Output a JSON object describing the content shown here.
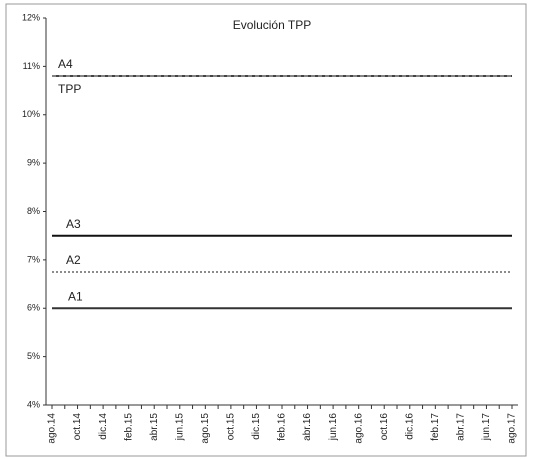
{
  "chart_data": {
    "type": "line",
    "title": "Evolución TPP",
    "categories": [
      "ago.14",
      null,
      "oct.14",
      null,
      "dic.14",
      null,
      "feb.15",
      null,
      "abr.15",
      null,
      "jun.15",
      null,
      "ago.15",
      null,
      "oct.15",
      null,
      "dic.15",
      null,
      "feb.16",
      null,
      "abr.16",
      null,
      "jun.16",
      null,
      "ago.16",
      null,
      "oct.16",
      null,
      "dic.16",
      null,
      "feb.17",
      null,
      "abr.17",
      null,
      "jun.17",
      null,
      "ago.17"
    ],
    "series": [
      {
        "name": "A4",
        "color": "#444444",
        "dash": "none",
        "values": [
          10.8,
          10.8,
          10.8,
          10.8,
          10.8,
          10.8,
          10.8,
          10.8,
          10.8,
          10.8,
          10.8,
          10.8,
          10.8,
          10.8,
          10.8,
          10.8,
          10.8,
          10.8,
          10.8,
          10.8,
          10.8,
          10.8,
          10.8,
          10.8,
          10.8,
          10.8,
          10.8,
          10.8,
          10.8,
          10.8,
          10.8,
          10.8,
          10.8,
          10.8,
          10.8,
          10.8,
          10.8
        ]
      },
      {
        "name": "TPP",
        "color": "#999999",
        "dash": "4 3",
        "values": [
          10.8,
          10.8,
          10.8,
          10.8,
          10.8,
          10.8,
          10.8,
          10.8,
          10.8,
          10.8,
          10.8,
          10.8,
          10.8,
          10.8,
          10.8,
          10.8,
          10.8,
          10.8,
          10.8,
          10.8,
          10.8,
          10.8,
          10.8,
          10.8,
          10.8,
          10.8,
          10.8,
          10.8,
          10.8,
          10.8,
          10.8,
          10.8,
          10.8,
          10.8,
          10.8,
          10.8,
          10.8
        ]
      },
      {
        "name": "A3",
        "color": "#111111",
        "dash": "none",
        "values": [
          7.5,
          7.5,
          7.5,
          7.5,
          7.5,
          7.5,
          7.5,
          7.5,
          7.5,
          7.5,
          7.5,
          7.5,
          7.5,
          7.5,
          7.5,
          7.5,
          7.5,
          7.5,
          7.5,
          7.5,
          7.5,
          7.5,
          7.5,
          7.5,
          7.5,
          7.5,
          7.5,
          7.5,
          7.5,
          7.5,
          7.5,
          7.5,
          7.5,
          7.5,
          7.5,
          7.5,
          7.5
        ]
      },
      {
        "name": "A2",
        "color": "#666666",
        "dash": "2 2",
        "values": [
          6.75,
          6.75,
          6.75,
          6.75,
          6.75,
          6.75,
          6.75,
          6.75,
          6.75,
          6.75,
          6.75,
          6.75,
          6.75,
          6.75,
          6.75,
          6.75,
          6.75,
          6.75,
          6.75,
          6.75,
          6.75,
          6.75,
          6.75,
          6.75,
          6.75,
          6.75,
          6.75,
          6.75,
          6.75,
          6.75,
          6.75,
          6.75,
          6.75,
          6.75,
          6.75,
          6.75,
          6.75
        ]
      },
      {
        "name": "A1",
        "color": "#333333",
        "dash": "none",
        "values": [
          6,
          6,
          6,
          6,
          6,
          6,
          6,
          6,
          6,
          6,
          6,
          6,
          6,
          6,
          6,
          6,
          6,
          6,
          6,
          6,
          6,
          6,
          6,
          6,
          6,
          6,
          6,
          6,
          6,
          6,
          6,
          6,
          6,
          6,
          6,
          6,
          6
        ]
      }
    ],
    "ylim": [
      4,
      12
    ],
    "yticks": [
      {
        "value": 4,
        "label": "4%"
      },
      {
        "value": 5,
        "label": "5%"
      },
      {
        "value": 6,
        "label": "6%"
      },
      {
        "value": 7,
        "label": "7%"
      },
      {
        "value": 8,
        "label": "8%"
      },
      {
        "value": 9,
        "label": "9%"
      },
      {
        "value": 10,
        "label": "10%"
      },
      {
        "value": 11,
        "label": "11%"
      },
      {
        "value": 12,
        "label": "12%"
      }
    ],
    "grid": false
  }
}
